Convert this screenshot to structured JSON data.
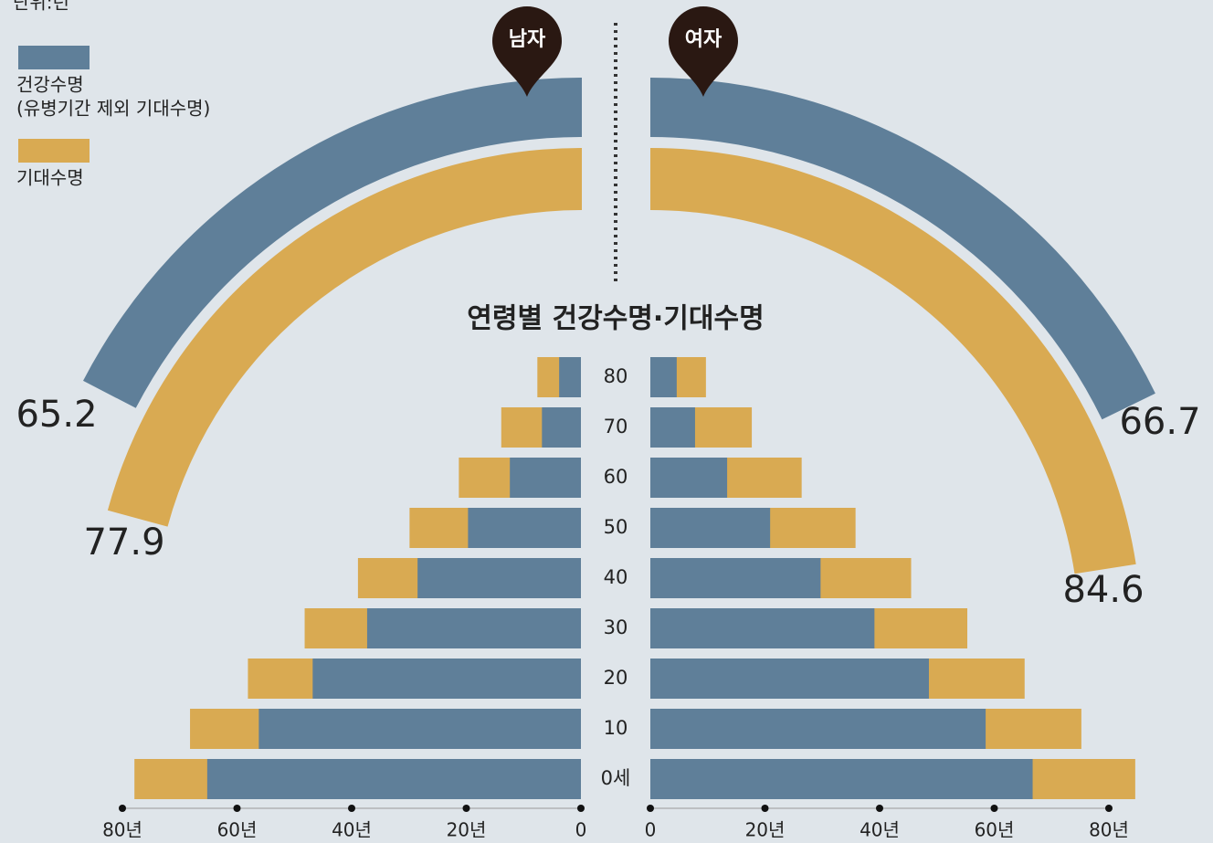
{
  "chart_data": {
    "type": "pyramid",
    "title": "연령별 건강수명·기대수명",
    "unit": "단위:년",
    "legend_note": "(유병기간 제외 기대수명)",
    "categories": [
      "80",
      "70",
      "60",
      "50",
      "40",
      "30",
      "20",
      "10",
      "0세"
    ],
    "sides": [
      {
        "name": "남자",
        "xlim": [
          0,
          80
        ],
        "xticks": [
          {
            "value": 80,
            "label": "80년"
          },
          {
            "value": 60,
            "label": "60년"
          },
          {
            "value": 40,
            "label": "40년"
          },
          {
            "value": 20,
            "label": "20년"
          },
          0
        ],
        "series": [
          {
            "name": "건강수명",
            "color": "#5f7f99",
            "values": [
              3.8,
              6.8,
              12.4,
              19.7,
              28.5,
              37.3,
              46.8,
              56.2,
              65.2
            ]
          },
          {
            "name": "기대수명",
            "color": "#d9aa52",
            "values": [
              7.6,
              13.9,
              21.3,
              29.9,
              38.9,
              48.2,
              58.1,
              68.2,
              77.9
            ]
          }
        ],
        "summary_values": [
          65.2,
          77.9
        ]
      },
      {
        "name": "여자",
        "xlim": [
          0,
          80
        ],
        "xticks": [
          0,
          {
            "value": 20,
            "label": "20년"
          },
          {
            "value": 40,
            "label": "40년"
          },
          {
            "value": 60,
            "label": "60년"
          },
          {
            "value": 80,
            "label": "80년"
          }
        ],
        "series": [
          {
            "name": "건강수명",
            "color": "#5f7f99",
            "values": [
              4.6,
              7.8,
              13.4,
              20.9,
              29.7,
              39.1,
              48.6,
              58.5,
              66.7
            ]
          },
          {
            "name": "기대수명",
            "color": "#d9aa52",
            "values": [
              9.7,
              17.7,
              26.4,
              35.8,
              45.5,
              55.3,
              65.3,
              75.2,
              84.6
            ]
          }
        ],
        "summary_values": [
          66.7,
          84.6
        ]
      }
    ]
  }
}
